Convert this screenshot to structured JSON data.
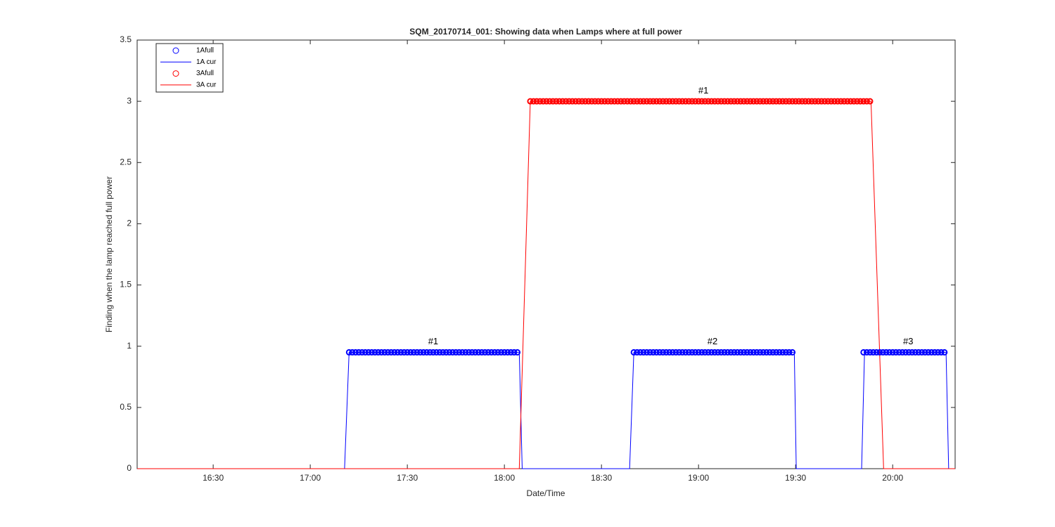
{
  "chart_data": {
    "type": "line",
    "title": "SQM_20170714_001: Showing data when Lamps where at full power",
    "xlabel": "Date/Time",
    "ylabel": "Finding when the lamp reached full power",
    "xlim": [
      966.5,
      1219.3
    ],
    "ylim": [
      0,
      3.5
    ],
    "xticks": [
      {
        "value": 990,
        "label": "16:30"
      },
      {
        "value": 1020,
        "label": "17:00"
      },
      {
        "value": 1050,
        "label": "17:30"
      },
      {
        "value": 1080,
        "label": "18:00"
      },
      {
        "value": 1110,
        "label": "18:30"
      },
      {
        "value": 1140,
        "label": "19:00"
      },
      {
        "value": 1170,
        "label": "19:30"
      },
      {
        "value": 1200,
        "label": "20:00"
      }
    ],
    "yticks": [
      0,
      0.5,
      1,
      1.5,
      2,
      2.5,
      3,
      3.5
    ],
    "legend": "top-left",
    "series": [
      {
        "name": "1Afull",
        "style": "marker",
        "color": "#0000ff",
        "x": [
          1032,
          1033,
          1034,
          1035,
          1036,
          1037,
          1038,
          1039,
          1040,
          1041,
          1042,
          1043,
          1044,
          1045,
          1046,
          1047,
          1048,
          1049,
          1050,
          1051,
          1052,
          1053,
          1054,
          1055,
          1056,
          1057,
          1058,
          1059,
          1060,
          1061,
          1062,
          1063,
          1064,
          1065,
          1066,
          1067,
          1068,
          1069,
          1070,
          1071,
          1072,
          1073,
          1074,
          1075,
          1076,
          1077,
          1078,
          1079,
          1080,
          1081,
          1082,
          1083,
          1084,
          1120,
          1121,
          1122,
          1123,
          1124,
          1125,
          1126,
          1127,
          1128,
          1129,
          1130,
          1131,
          1132,
          1133,
          1134,
          1135,
          1136,
          1137,
          1138,
          1139,
          1140,
          1141,
          1142,
          1143,
          1144,
          1145,
          1146,
          1147,
          1148,
          1149,
          1150,
          1151,
          1152,
          1153,
          1154,
          1155,
          1156,
          1157,
          1158,
          1159,
          1160,
          1161,
          1162,
          1163,
          1164,
          1165,
          1166,
          1167,
          1168,
          1169,
          1191,
          1192,
          1193,
          1194,
          1195,
          1196,
          1197,
          1198,
          1199,
          1200,
          1201,
          1202,
          1203,
          1204,
          1205,
          1206,
          1207,
          1208,
          1209,
          1210,
          1211,
          1212,
          1213,
          1214,
          1215,
          1216
        ],
        "values": [
          0.95,
          0.95,
          0.95,
          0.95,
          0.95,
          0.95,
          0.95,
          0.95,
          0.95,
          0.95,
          0.95,
          0.95,
          0.95,
          0.95,
          0.95,
          0.95,
          0.95,
          0.95,
          0.95,
          0.95,
          0.95,
          0.95,
          0.95,
          0.95,
          0.95,
          0.95,
          0.95,
          0.95,
          0.95,
          0.95,
          0.95,
          0.95,
          0.95,
          0.95,
          0.95,
          0.95,
          0.95,
          0.95,
          0.95,
          0.95,
          0.95,
          0.95,
          0.95,
          0.95,
          0.95,
          0.95,
          0.95,
          0.95,
          0.95,
          0.95,
          0.95,
          0.95,
          0.95,
          0.95,
          0.95,
          0.95,
          0.95,
          0.95,
          0.95,
          0.95,
          0.95,
          0.95,
          0.95,
          0.95,
          0.95,
          0.95,
          0.95,
          0.95,
          0.95,
          0.95,
          0.95,
          0.95,
          0.95,
          0.95,
          0.95,
          0.95,
          0.95,
          0.95,
          0.95,
          0.95,
          0.95,
          0.95,
          0.95,
          0.95,
          0.95,
          0.95,
          0.95,
          0.95,
          0.95,
          0.95,
          0.95,
          0.95,
          0.95,
          0.95,
          0.95,
          0.95,
          0.95,
          0.95,
          0.95,
          0.95,
          0.95,
          0.95,
          0.95,
          0.95,
          0.95,
          0.95,
          0.95,
          0.95,
          0.95,
          0.95,
          0.95,
          0.95,
          0.95,
          0.95,
          0.95,
          0.95,
          0.95,
          0.95,
          0.95,
          0.95,
          0.95,
          0.95,
          0.95,
          0.95,
          0.95,
          0.95,
          0.95,
          0.95,
          0.95
        ]
      },
      {
        "name": "1A cur",
        "style": "line",
        "color": "#0000ff",
        "x": [
          966.5,
          1030.6,
          1032,
          1084.6,
          1085.5,
          1118.7,
          1120,
          1169.6,
          1170.2,
          1190.4,
          1191.3,
          1216.5,
          1217.3,
          1219.3
        ],
        "values": [
          0,
          0,
          0.95,
          0.95,
          0,
          0,
          0.95,
          0.95,
          0,
          0,
          0.95,
          0.95,
          0,
          0
        ]
      },
      {
        "name": "3Afull",
        "style": "marker",
        "color": "#ff0000",
        "x": [
          1088,
          1089,
          1090,
          1091,
          1092,
          1093,
          1094,
          1095,
          1096,
          1097,
          1098,
          1099,
          1100,
          1101,
          1102,
          1103,
          1104,
          1105,
          1106,
          1107,
          1108,
          1109,
          1110,
          1111,
          1112,
          1113,
          1114,
          1115,
          1116,
          1117,
          1118,
          1119,
          1120,
          1121,
          1122,
          1123,
          1124,
          1125,
          1126,
          1127,
          1128,
          1129,
          1130,
          1131,
          1132,
          1133,
          1134,
          1135,
          1136,
          1137,
          1138,
          1139,
          1140,
          1141,
          1142,
          1143,
          1144,
          1145,
          1146,
          1147,
          1148,
          1149,
          1150,
          1151,
          1152,
          1153,
          1154,
          1155,
          1156,
          1157,
          1158,
          1159,
          1160,
          1161,
          1162,
          1163,
          1164,
          1165,
          1166,
          1167,
          1168,
          1169,
          1170,
          1171,
          1172,
          1173,
          1174,
          1175,
          1176,
          1177,
          1178,
          1179,
          1180,
          1181,
          1182,
          1183,
          1184,
          1185,
          1186,
          1187,
          1188,
          1189,
          1190,
          1191,
          1192,
          1193
        ],
        "values": [
          3,
          3,
          3,
          3,
          3,
          3,
          3,
          3,
          3,
          3,
          3,
          3,
          3,
          3,
          3,
          3,
          3,
          3,
          3,
          3,
          3,
          3,
          3,
          3,
          3,
          3,
          3,
          3,
          3,
          3,
          3,
          3,
          3,
          3,
          3,
          3,
          3,
          3,
          3,
          3,
          3,
          3,
          3,
          3,
          3,
          3,
          3,
          3,
          3,
          3,
          3,
          3,
          3,
          3,
          3,
          3,
          3,
          3,
          3,
          3,
          3,
          3,
          3,
          3,
          3,
          3,
          3,
          3,
          3,
          3,
          3,
          3,
          3,
          3,
          3,
          3,
          3,
          3,
          3,
          3,
          3,
          3,
          3,
          3,
          3,
          3,
          3,
          3,
          3,
          3,
          3,
          3,
          3,
          3,
          3,
          3,
          3,
          3,
          3,
          3,
          3,
          3,
          3,
          3,
          3,
          3
        ]
      },
      {
        "name": "3A cur",
        "style": "line",
        "color": "#ff0000",
        "x": [
          966.5,
          1084.6,
          1088,
          1193.3,
          1197.2,
          1219.3
        ],
        "values": [
          0,
          0,
          3,
          3,
          0,
          0
        ]
      }
    ],
    "annotations": [
      {
        "text": "#1",
        "x": 1058,
        "y": 1.0
      },
      {
        "text": "#2",
        "x": 1144.3,
        "y": 1.0
      },
      {
        "text": "#3",
        "x": 1204.8,
        "y": 1.0
      },
      {
        "text": "#1",
        "x": 1141.5,
        "y": 3.05
      }
    ]
  }
}
